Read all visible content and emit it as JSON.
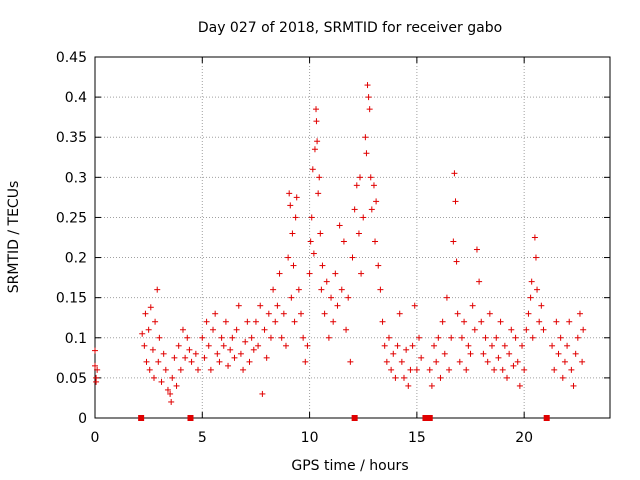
{
  "chart_data": {
    "type": "scatter",
    "title": "Day 027 of 2018, SRMTID for receiver gabo",
    "xlabel": "GPS time / hours",
    "ylabel": "SRMTID / TECUs",
    "xlim": [
      0,
      24
    ],
    "ylim": [
      0,
      0.45
    ],
    "grid": true,
    "x_ticks": [
      {
        "value": 0,
        "label": "0"
      },
      {
        "value": 5,
        "label": "5"
      },
      {
        "value": 10,
        "label": "10"
      },
      {
        "value": 15,
        "label": "15"
      },
      {
        "value": 20,
        "label": "20"
      }
    ],
    "y_ticks": [
      {
        "value": 0,
        "label": "0"
      },
      {
        "value": 0.05,
        "label": "0.05"
      },
      {
        "value": 0.1,
        "label": "0.1"
      },
      {
        "value": 0.15,
        "label": "0.15"
      },
      {
        "value": 0.2,
        "label": "0.2"
      },
      {
        "value": 0.25,
        "label": "0.25"
      },
      {
        "value": 0.3,
        "label": "0.3"
      },
      {
        "value": 0.35,
        "label": "0.35"
      },
      {
        "value": 0.4,
        "label": "0.4"
      },
      {
        "value": 0.45,
        "label": "0.45"
      }
    ],
    "marker": "+",
    "color": "#e00000",
    "series": [
      {
        "name": "SRMTID",
        "points": [
          [
            0.0,
            0.084
          ],
          [
            0.0,
            0.065
          ],
          [
            0.05,
            0.05
          ],
          [
            0.05,
            0.045
          ],
          [
            0.1,
            0.06
          ],
          [
            2.2,
            0.105
          ],
          [
            2.3,
            0.09
          ],
          [
            2.35,
            0.13
          ],
          [
            2.4,
            0.07
          ],
          [
            2.5,
            0.11
          ],
          [
            2.55,
            0.06
          ],
          [
            2.6,
            0.138
          ],
          [
            2.7,
            0.085
          ],
          [
            2.75,
            0.05
          ],
          [
            2.8,
            0.12
          ],
          [
            2.9,
            0.16
          ],
          [
            2.95,
            0.07
          ],
          [
            3.0,
            0.1
          ],
          [
            3.1,
            0.045
          ],
          [
            3.2,
            0.08
          ],
          [
            3.3,
            0.06
          ],
          [
            3.4,
            0.035
          ],
          [
            3.5,
            0.03
          ],
          [
            3.55,
            0.02
          ],
          [
            3.6,
            0.05
          ],
          [
            3.7,
            0.075
          ],
          [
            3.8,
            0.04
          ],
          [
            3.9,
            0.09
          ],
          [
            4.0,
            0.06
          ],
          [
            4.1,
            0.11
          ],
          [
            4.2,
            0.075
          ],
          [
            4.3,
            0.1
          ],
          [
            4.4,
            0.085
          ],
          [
            4.5,
            0.07
          ],
          [
            4.7,
            0.08
          ],
          [
            4.8,
            0.06
          ],
          [
            5.0,
            0.1
          ],
          [
            5.1,
            0.075
          ],
          [
            5.2,
            0.12
          ],
          [
            5.3,
            0.09
          ],
          [
            5.4,
            0.06
          ],
          [
            5.5,
            0.11
          ],
          [
            5.6,
            0.13
          ],
          [
            5.7,
            0.08
          ],
          [
            5.8,
            0.07
          ],
          [
            5.9,
            0.1
          ],
          [
            6.0,
            0.09
          ],
          [
            6.1,
            0.12
          ],
          [
            6.2,
            0.065
          ],
          [
            6.3,
            0.085
          ],
          [
            6.4,
            0.1
          ],
          [
            6.5,
            0.075
          ],
          [
            6.6,
            0.11
          ],
          [
            6.7,
            0.14
          ],
          [
            6.8,
            0.08
          ],
          [
            6.9,
            0.06
          ],
          [
            7.0,
            0.095
          ],
          [
            7.1,
            0.12
          ],
          [
            7.2,
            0.07
          ],
          [
            7.3,
            0.1
          ],
          [
            7.4,
            0.085
          ],
          [
            7.5,
            0.12
          ],
          [
            7.6,
            0.09
          ],
          [
            7.7,
            0.14
          ],
          [
            7.8,
            0.03
          ],
          [
            7.9,
            0.11
          ],
          [
            8.0,
            0.075
          ],
          [
            8.1,
            0.13
          ],
          [
            8.2,
            0.1
          ],
          [
            8.3,
            0.16
          ],
          [
            8.4,
            0.12
          ],
          [
            8.5,
            0.14
          ],
          [
            8.6,
            0.18
          ],
          [
            8.7,
            0.1
          ],
          [
            8.8,
            0.13
          ],
          [
            8.9,
            0.09
          ],
          [
            9.0,
            0.2
          ],
          [
            9.05,
            0.28
          ],
          [
            9.1,
            0.265
          ],
          [
            9.15,
            0.15
          ],
          [
            9.2,
            0.23
          ],
          [
            9.25,
            0.19
          ],
          [
            9.3,
            0.12
          ],
          [
            9.35,
            0.25
          ],
          [
            9.4,
            0.275
          ],
          [
            9.5,
            0.16
          ],
          [
            9.6,
            0.13
          ],
          [
            9.7,
            0.1
          ],
          [
            9.8,
            0.07
          ],
          [
            9.9,
            0.09
          ],
          [
            10.0,
            0.18
          ],
          [
            10.05,
            0.22
          ],
          [
            10.1,
            0.25
          ],
          [
            10.15,
            0.31
          ],
          [
            10.2,
            0.205
          ],
          [
            10.25,
            0.335
          ],
          [
            10.3,
            0.385
          ],
          [
            10.32,
            0.37
          ],
          [
            10.35,
            0.345
          ],
          [
            10.4,
            0.28
          ],
          [
            10.45,
            0.3
          ],
          [
            10.5,
            0.23
          ],
          [
            10.55,
            0.16
          ],
          [
            10.6,
            0.19
          ],
          [
            10.7,
            0.13
          ],
          [
            10.8,
            0.17
          ],
          [
            10.9,
            0.1
          ],
          [
            11.0,
            0.15
          ],
          [
            11.1,
            0.12
          ],
          [
            11.2,
            0.18
          ],
          [
            11.3,
            0.14
          ],
          [
            11.4,
            0.24
          ],
          [
            11.5,
            0.16
          ],
          [
            11.6,
            0.22
          ],
          [
            11.7,
            0.11
          ],
          [
            11.8,
            0.15
          ],
          [
            11.9,
            0.07
          ],
          [
            12.0,
            0.2
          ],
          [
            12.1,
            0.26
          ],
          [
            12.2,
            0.29
          ],
          [
            12.3,
            0.23
          ],
          [
            12.35,
            0.3
          ],
          [
            12.4,
            0.18
          ],
          [
            12.5,
            0.25
          ],
          [
            12.6,
            0.35
          ],
          [
            12.65,
            0.33
          ],
          [
            12.7,
            0.415
          ],
          [
            12.75,
            0.4
          ],
          [
            12.8,
            0.385
          ],
          [
            12.85,
            0.3
          ],
          [
            12.9,
            0.26
          ],
          [
            13.0,
            0.29
          ],
          [
            13.05,
            0.22
          ],
          [
            13.1,
            0.27
          ],
          [
            13.2,
            0.19
          ],
          [
            13.3,
            0.16
          ],
          [
            13.4,
            0.12
          ],
          [
            13.5,
            0.09
          ],
          [
            13.6,
            0.07
          ],
          [
            13.7,
            0.1
          ],
          [
            13.8,
            0.06
          ],
          [
            13.9,
            0.08
          ],
          [
            14.0,
            0.05
          ],
          [
            14.1,
            0.09
          ],
          [
            14.2,
            0.13
          ],
          [
            14.3,
            0.07
          ],
          [
            14.4,
            0.05
          ],
          [
            14.5,
            0.085
          ],
          [
            14.6,
            0.04
          ],
          [
            14.7,
            0.06
          ],
          [
            14.8,
            0.09
          ],
          [
            14.9,
            0.14
          ],
          [
            15.0,
            0.06
          ],
          [
            15.1,
            0.1
          ],
          [
            15.2,
            0.075
          ],
          [
            15.6,
            0.06
          ],
          [
            15.7,
            0.04
          ],
          [
            15.8,
            0.09
          ],
          [
            15.9,
            0.07
          ],
          [
            16.0,
            0.1
          ],
          [
            16.1,
            0.05
          ],
          [
            16.2,
            0.12
          ],
          [
            16.3,
            0.08
          ],
          [
            16.4,
            0.15
          ],
          [
            16.5,
            0.06
          ],
          [
            16.6,
            0.1
          ],
          [
            16.7,
            0.22
          ],
          [
            16.75,
            0.305
          ],
          [
            16.8,
            0.27
          ],
          [
            16.85,
            0.195
          ],
          [
            16.9,
            0.13
          ],
          [
            17.0,
            0.07
          ],
          [
            17.1,
            0.1
          ],
          [
            17.2,
            0.12
          ],
          [
            17.3,
            0.06
          ],
          [
            17.4,
            0.09
          ],
          [
            17.5,
            0.08
          ],
          [
            17.6,
            0.14
          ],
          [
            17.7,
            0.11
          ],
          [
            17.8,
            0.21
          ],
          [
            17.9,
            0.17
          ],
          [
            18.0,
            0.12
          ],
          [
            18.1,
            0.08
          ],
          [
            18.2,
            0.1
          ],
          [
            18.3,
            0.07
          ],
          [
            18.4,
            0.13
          ],
          [
            18.5,
            0.09
          ],
          [
            18.6,
            0.06
          ],
          [
            18.7,
            0.1
          ],
          [
            18.8,
            0.075
          ],
          [
            18.9,
            0.12
          ],
          [
            19.0,
            0.06
          ],
          [
            19.1,
            0.09
          ],
          [
            19.2,
            0.05
          ],
          [
            19.3,
            0.08
          ],
          [
            19.4,
            0.11
          ],
          [
            19.5,
            0.065
          ],
          [
            19.6,
            0.1
          ],
          [
            19.7,
            0.07
          ],
          [
            19.8,
            0.04
          ],
          [
            19.9,
            0.09
          ],
          [
            20.0,
            0.06
          ],
          [
            20.1,
            0.11
          ],
          [
            20.2,
            0.13
          ],
          [
            20.3,
            0.15
          ],
          [
            20.35,
            0.17
          ],
          [
            20.4,
            0.1
          ],
          [
            20.5,
            0.225
          ],
          [
            20.55,
            0.2
          ],
          [
            20.6,
            0.16
          ],
          [
            20.7,
            0.12
          ],
          [
            20.8,
            0.14
          ],
          [
            20.9,
            0.11
          ],
          [
            21.3,
            0.09
          ],
          [
            21.4,
            0.06
          ],
          [
            21.5,
            0.12
          ],
          [
            21.6,
            0.08
          ],
          [
            21.7,
            0.1
          ],
          [
            21.8,
            0.05
          ],
          [
            21.9,
            0.07
          ],
          [
            22.0,
            0.09
          ],
          [
            22.1,
            0.12
          ],
          [
            22.2,
            0.06
          ],
          [
            22.3,
            0.04
          ],
          [
            22.4,
            0.08
          ],
          [
            22.5,
            0.1
          ],
          [
            22.6,
            0.13
          ],
          [
            22.7,
            0.07
          ],
          [
            22.75,
            0.11
          ]
        ]
      },
      {
        "name": "baseline markers",
        "marker": "square",
        "points": [
          [
            2.15,
            0
          ],
          [
            4.45,
            0
          ],
          [
            12.1,
            0
          ],
          [
            15.4,
            0
          ],
          [
            15.6,
            0
          ],
          [
            21.05,
            0
          ]
        ]
      }
    ]
  }
}
